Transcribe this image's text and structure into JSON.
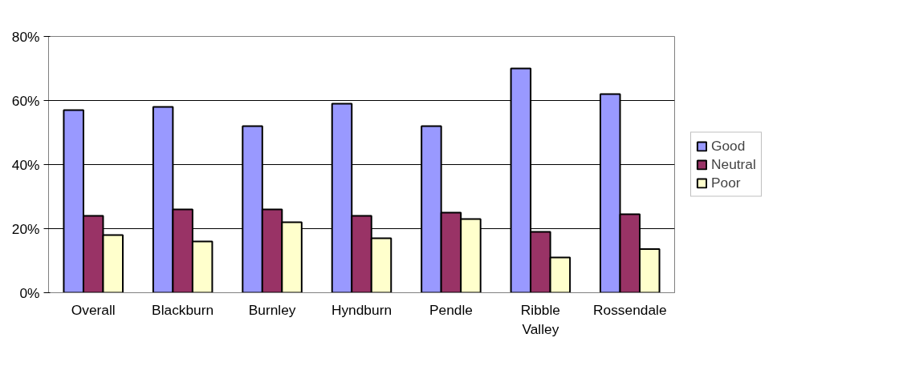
{
  "chart_data": {
    "type": "bar",
    "categories": [
      "Overall",
      "Blackburn",
      "Burnley",
      "Hyndburn",
      "Pendle",
      "Ribble Valley",
      "Rossendale"
    ],
    "series": [
      {
        "name": "Good",
        "color": "#9999ff",
        "values": [
          57,
          58,
          52,
          59,
          52,
          70,
          62
        ]
      },
      {
        "name": "Neutral",
        "color": "#993366",
        "values": [
          24,
          26,
          26,
          24,
          25,
          19,
          24.5
        ]
      },
      {
        "name": "Poor",
        "color": "#ffffcc",
        "values": [
          18,
          16,
          22,
          17,
          23,
          11,
          13.6
        ]
      }
    ],
    "ylim": [
      0,
      80
    ],
    "yticks": [
      {
        "value": 0,
        "label": "0%"
      },
      {
        "value": 20,
        "label": "20%"
      },
      {
        "value": 40,
        "label": "40%"
      },
      {
        "value": 60,
        "label": "60%"
      },
      {
        "value": 80,
        "label": "80%"
      }
    ],
    "grid": "y",
    "legend": "right"
  }
}
